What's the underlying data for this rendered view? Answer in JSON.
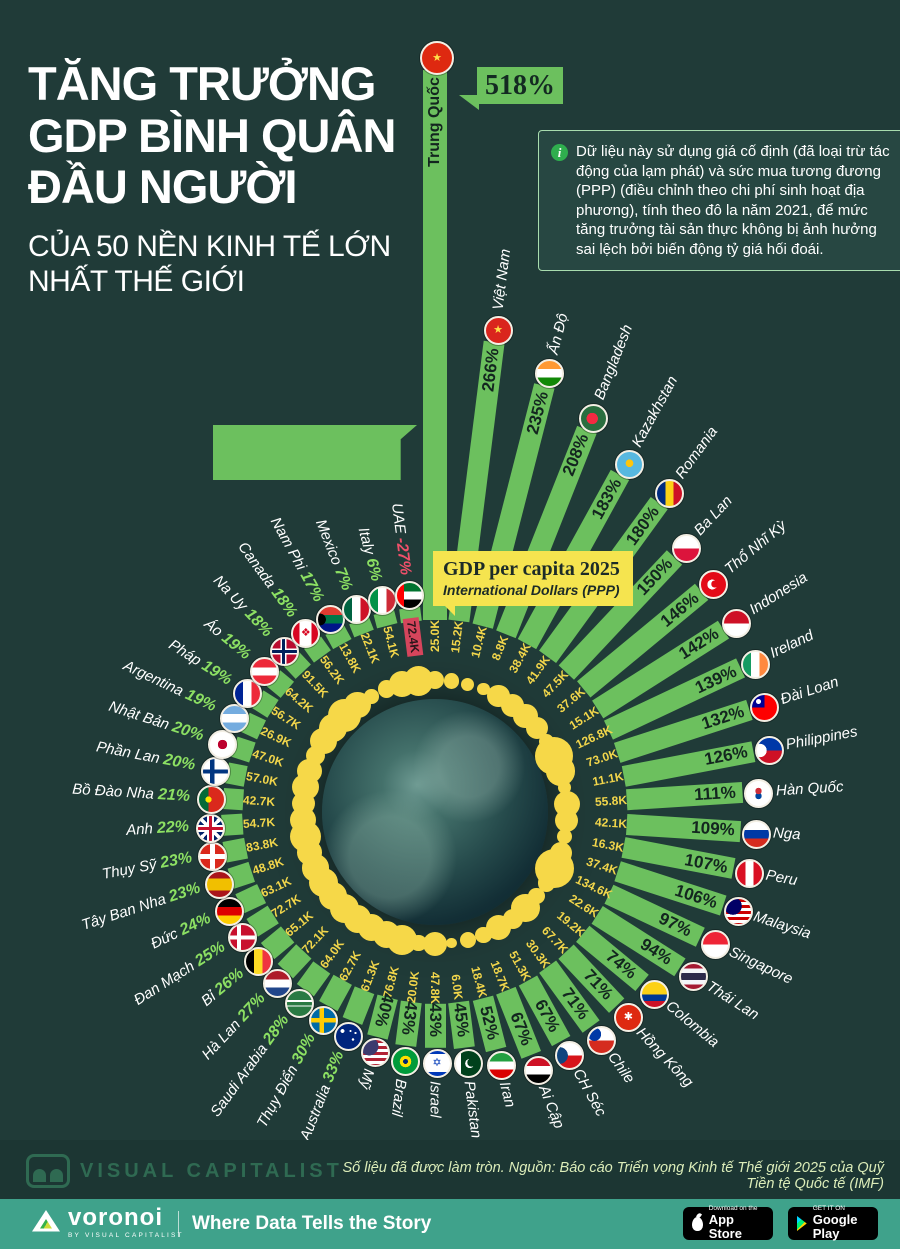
{
  "colors": {
    "background": "#203b38",
    "bar_green": "#6cc05e",
    "label_green": "#8ce063",
    "value_yellow": "#f2d64b",
    "dot_yellow": "#f6d848",
    "negative_red": "#d6455c",
    "center_box_yellow": "#f5e44f",
    "app_bar_teal": "#3fa28b"
  },
  "header": {
    "title_lines": [
      "TĂNG TRƯỞNG",
      "GDP BÌNH QUÂN",
      "ĐẦU NGƯỜI"
    ],
    "subtitle_lines": [
      "CỦA 50 NỀN KINH TẾ LỚN",
      "NHẤT THẾ GIỚI"
    ]
  },
  "info_note": {
    "text": "Dữ liệu này sử dụng giá cố định (đã loại trừ tác động của lạm phát) và sức mua tương đương (PPP) (điều chỉnh theo chi phí sinh hoạt địa phương), tính theo đô la năm 2021, để mức tăng trưởng tài sản thực không bị ảnh hưởng sai lệch bởi biến động tỷ giá hối đoái."
  },
  "china_callout": {
    "value": "518%"
  },
  "center_label": {
    "title": "GDP per capita 2025",
    "subtitle": "International Dollars (PPP)"
  },
  "chart_data": {
    "type": "radial-bar",
    "title": "Tăng trưởng GDP bình quân đầu người của 50 nền kinh tế lớn nhất thế giới",
    "growth_unit": "%",
    "gdp_unit": "nghìn đô la quốc tế (PPP), 2025",
    "series": [
      {
        "name": "Trung Quốc",
        "growth_pct": 518,
        "gdp_k": 25.0,
        "gdp_label": "25.0K",
        "flag": {
          "bg": "#de2910",
          "glyph": "★",
          "glyph_color": "#ffde49"
        }
      },
      {
        "name": "Việt Nam",
        "growth_pct": 266,
        "gdp_k": 15.2,
        "gdp_label": "15.2K",
        "flag": {
          "bg": "#da251d",
          "glyph": "★",
          "glyph_color": "#ffde49"
        }
      },
      {
        "name": "Ấn Độ",
        "growth_pct": 235,
        "gdp_k": 10.4,
        "gdp_label": "10.4K",
        "flag": {
          "bg": "#ffffff",
          "img": "linear-gradient(to bottom,#ff9933 0 33%,#ffffff 33% 66%,#128807 66%)"
        }
      },
      {
        "name": "Bangladesh",
        "growth_pct": 208,
        "gdp_k": 8.8,
        "gdp_label": "8.8K",
        "flag": {
          "bg": "#2a6e3f",
          "img": "radial-gradient(circle at 45% 50%,#f42a41 0 30%,transparent 31%)"
        }
      },
      {
        "name": "Kazakhstan",
        "growth_pct": 183,
        "gdp_k": 38.4,
        "gdp_label": "38.4K",
        "flag": {
          "bg": "#57b8e0",
          "img": "radial-gradient(circle at 50% 45%,#fec50c 0 20%,transparent 21%)"
        }
      },
      {
        "name": "Romania",
        "growth_pct": 180,
        "gdp_k": 41.9,
        "gdp_label": "41.9K",
        "flag": {
          "bg": "#ffffff",
          "img": "linear-gradient(to right,#002b7f 0 33%,#fcd116 33% 66%,#ce1126 66%)"
        }
      },
      {
        "name": "Ba Lan",
        "growth_pct": 150,
        "gdp_k": 47.5,
        "gdp_label": "47.5K",
        "flag": {
          "bg": "#ffffff",
          "img": "linear-gradient(to bottom,#ffffff 0 50%,#dc143c 50%)"
        }
      },
      {
        "name": "Thổ Nhĩ Kỳ",
        "growth_pct": 146,
        "gdp_k": 37.6,
        "gdp_label": "37.6K",
        "flag": {
          "bg": "#e30a17",
          "img": "radial-gradient(circle at 55% 48%,#e30a17 0 18%,transparent 19%),radial-gradient(circle at 45% 50%,#ffffff 0 26%,transparent 27%)"
        }
      },
      {
        "name": "Indonesia",
        "growth_pct": 142,
        "gdp_k": 15.1,
        "gdp_label": "15.1K",
        "flag": {
          "bg": "#ffffff",
          "img": "linear-gradient(to bottom,#ce1126 0 50%,#ffffff 50%)"
        }
      },
      {
        "name": "Ireland",
        "growth_pct": 139,
        "gdp_k": 126.8,
        "gdp_label": "126.8K",
        "flag": {
          "bg": "#ffffff",
          "img": "linear-gradient(to right,#169b62 0 33%,#ffffff 33% 66%,#ff883e 66%)"
        }
      },
      {
        "name": "Đài Loan",
        "growth_pct": 132,
        "gdp_k": 73.0,
        "gdp_label": "73.0K",
        "flag": {
          "bg": "#fe0000",
          "img": "radial-gradient(circle at 26% 26%,#ffffff 0 9%,transparent 10%),conic-gradient(from 270deg,#000095 0 90deg,transparent 90deg)"
        }
      },
      {
        "name": "Philippines",
        "growth_pct": 126,
        "gdp_k": 11.1,
        "gdp_label": "11.1K",
        "flag": {
          "bg": "#ffffff",
          "img": "radial-gradient(circle at 12% 50%,#ffffff 0 26%,transparent 27%),linear-gradient(to bottom,#0038a8 0 50%,#ce1126 50%)"
        }
      },
      {
        "name": "Hàn Quốc",
        "growth_pct": 111,
        "gdp_k": 55.8,
        "gdp_label": "55.8K",
        "flag": {
          "bg": "#ffffff",
          "img": "radial-gradient(circle at 50% 40%,#cd2e3a 0 16%,transparent 17%),radial-gradient(circle at 50% 60%,#0047a0 0 16%,transparent 17%)"
        }
      },
      {
        "name": "Nga",
        "growth_pct": 109,
        "gdp_k": 42.1,
        "gdp_label": "42.1K",
        "flag": {
          "bg": "#ffffff",
          "img": "linear-gradient(to bottom,#ffffff 0 33%,#0039a6 33% 66%,#d52b1e 66%)"
        }
      },
      {
        "name": "Peru",
        "growth_pct": 107,
        "gdp_k": 16.3,
        "gdp_label": "16.3K",
        "flag": {
          "bg": "#ffffff",
          "img": "linear-gradient(to right,#d91023 0 33%,#ffffff 33% 66%,#d91023 66%)"
        }
      },
      {
        "name": "Malaysia",
        "growth_pct": 106,
        "gdp_k": 37.4,
        "gdp_label": "37.4K",
        "flag": {
          "bg": "#ffffff",
          "img": "radial-gradient(circle at 28% 28%,#010066 0 34%,transparent 35%),repeating-linear-gradient(to bottom,#cc0001 0 3px,#ffffff 3px 6px)"
        }
      },
      {
        "name": "Singapore",
        "growth_pct": 97,
        "gdp_k": 134.6,
        "gdp_label": "134.6K",
        "flag": {
          "bg": "#ffffff",
          "img": "linear-gradient(to bottom,#ee2536 0 50%,#ffffff 50%)"
        }
      },
      {
        "name": "Thái Lan",
        "growth_pct": 94,
        "gdp_k": 22.6,
        "gdp_label": "22.6K",
        "flag": {
          "bg": "#ffffff",
          "img": "linear-gradient(to bottom,#a51931 0 18%,#f4f5f8 18% 36%,#2d2a4a 36% 64%,#f4f5f8 64% 82%,#a51931 82%)"
        }
      },
      {
        "name": "Colombia",
        "growth_pct": 74,
        "gdp_k": 19.2,
        "gdp_label": "19.2K",
        "flag": {
          "bg": "#ffffff",
          "img": "linear-gradient(to bottom,#fcd116 0 50%,#003893 50% 75%,#ce1126 75%)"
        }
      },
      {
        "name": "Hồng Kông",
        "growth_pct": 71,
        "gdp_k": 67.7,
        "gdp_label": "67.7K",
        "flag": {
          "bg": "#de2910",
          "glyph": "✱",
          "glyph_color": "#ffffff"
        }
      },
      {
        "name": "Chile",
        "growth_pct": 71,
        "gdp_k": 30.3,
        "gdp_label": "30.3K",
        "flag": {
          "bg": "#ffffff",
          "img": "radial-gradient(circle at 22% 25%,#0039a6 0 24%,transparent 25%),linear-gradient(to bottom,#ffffff 0 50%,#d52b1e 50%)"
        }
      },
      {
        "name": "CH Séc",
        "growth_pct": 67,
        "gdp_k": 51.3,
        "gdp_label": "51.3K",
        "flag": {
          "bg": "#ffffff",
          "img": "radial-gradient(circle at 10% 50%,#11457e 0 32%,transparent 33%),linear-gradient(to bottom,#ffffff 0 50%,#d7141a 50%)"
        }
      },
      {
        "name": "Ai Cập",
        "growth_pct": 67,
        "gdp_k": 18.7,
        "gdp_label": "18.7K",
        "flag": {
          "bg": "#ffffff",
          "img": "linear-gradient(to bottom,#ce1126 0 33%,#ffffff 33% 66%,#000000 66%)"
        }
      },
      {
        "name": "Iran",
        "growth_pct": 52,
        "gdp_k": 18.4,
        "gdp_label": "18.4K",
        "flag": {
          "bg": "#ffffff",
          "img": "linear-gradient(to bottom,#239f40 0 33%,#ffffff 33% 66%,#da0000 66%)"
        }
      },
      {
        "name": "Pakistan",
        "growth_pct": 45,
        "gdp_k": 6.0,
        "gdp_label": "6.0K",
        "flag": {
          "bg": "#01411c",
          "img": "radial-gradient(circle at 62% 46%,#01411c 0 20%,transparent 21%),radial-gradient(circle at 55% 50%,#ffffff 0 24%,transparent 25%),linear-gradient(to right,#ffffff 0 20%,transparent 20%)"
        }
      },
      {
        "name": "Israel",
        "growth_pct": 43,
        "gdp_k": 47.8,
        "gdp_label": "47.8K",
        "flag": {
          "bg": "#ffffff",
          "glyph": "✡",
          "glyph_color": "#0038b8",
          "img": "linear-gradient(to bottom,#0038b8 0 12%,transparent 12% 84%,#0038b8 84%)"
        }
      },
      {
        "name": "Brazil",
        "growth_pct": 43,
        "gdp_k": 20.0,
        "gdp_label": "20.0K",
        "flag": {
          "bg": "#009b3a",
          "img": "radial-gradient(circle,#002776 0 14%,#fedf00 14% 32%,transparent 33%)"
        }
      },
      {
        "name": "Mỹ",
        "growth_pct": 40,
        "gdp_k": 76.8,
        "gdp_label": "76.8K",
        "flag": {
          "bg": "#ffffff",
          "img": "radial-gradient(circle at 25% 25%,#3c3b6e 0 34%,transparent 35%),repeating-linear-gradient(to bottom,#b22234 0 3px,#ffffff 3px 6px)"
        }
      },
      {
        "name": "Australia",
        "growth_pct": 33,
        "gdp_k": 61.3,
        "gdp_label": "61.3K",
        "flag": {
          "bg": "#00247d",
          "img": "radial-gradient(circle at 26% 28%,#ffffff 0 7%,transparent 8%),radial-gradient(circle at 68% 62%,#ffffff 0 5%,transparent 6%),radial-gradient(circle at 58% 28%,#ffffff 0 4%,transparent 5%),radial-gradient(circle at 78% 36%,#ffffff 0 4%,transparent 5%)"
        }
      },
      {
        "name": "Thụy Điển",
        "growth_pct": 30,
        "gdp_k": 62.7,
        "gdp_label": "62.7K",
        "flag": {
          "bg": "#006aa7",
          "img": "linear-gradient(to right,transparent 0 34%,#fecc02 34% 52%,transparent 52%),linear-gradient(to bottom,transparent 0 41%,#fecc02 41% 59%,transparent 59%)"
        }
      },
      {
        "name": "Saudi Arabia",
        "growth_pct": 28,
        "gdp_k": 64.0,
        "gdp_label": "64.0K",
        "flag": {
          "bg": "#2a7a43",
          "img": "linear-gradient(to bottom,transparent 0 36%,#ffffff 36% 44%,transparent 44% 58%,#ffffff 58% 63%,transparent 63%)"
        }
      },
      {
        "name": "Hà Lan",
        "growth_pct": 27,
        "gdp_k": 72.1,
        "gdp_label": "72.1K",
        "flag": {
          "bg": "#ffffff",
          "img": "linear-gradient(to bottom,#ae1c28 0 33%,#ffffff 33% 66%,#21468b 66%)"
        }
      },
      {
        "name": "Bỉ",
        "growth_pct": 26,
        "gdp_k": 65.1,
        "gdp_label": "65.1K",
        "flag": {
          "bg": "#ffffff",
          "img": "linear-gradient(to right,#000000 0 33%,#fdda24 33% 66%,#ef3340 66%)"
        }
      },
      {
        "name": "Đan Mạch",
        "growth_pct": 25,
        "gdp_k": 72.7,
        "gdp_label": "72.7K",
        "flag": {
          "bg": "#c8102e",
          "img": "linear-gradient(to right,transparent 0 28%,#ffffff 28% 44%,transparent 44%),linear-gradient(to bottom,transparent 0 42%,#ffffff 42% 58%,transparent 58%)"
        }
      },
      {
        "name": "Đức",
        "growth_pct": 24,
        "gdp_k": 63.1,
        "gdp_label": "63.1K",
        "flag": {
          "bg": "#ffffff",
          "img": "linear-gradient(to bottom,#000000 0 33%,#dd0000 33% 66%,#ffce00 66%)"
        }
      },
      {
        "name": "Tây Ban Nha",
        "growth_pct": 23,
        "gdp_k": 48.8,
        "gdp_label": "48.8K",
        "flag": {
          "bg": "#ffffff",
          "img": "linear-gradient(to bottom,#aa151b 0 25%,#f1bf00 25% 75%,#aa151b 75%)"
        }
      },
      {
        "name": "Thụy Sỹ",
        "growth_pct": 23,
        "gdp_k": 83.8,
        "gdp_label": "83.8K",
        "flag": {
          "bg": "#da291c",
          "img": "linear-gradient(to right,transparent 0 40%,#ffffff 40% 60%,transparent 60%),linear-gradient(to bottom,transparent 0 40%,#ffffff 40% 60%,transparent 60%)"
        }
      },
      {
        "name": "Anh",
        "growth_pct": 22,
        "gdp_k": 54.7,
        "gdp_label": "54.7K",
        "flag": {
          "bg": "#012169",
          "img": "linear-gradient(to right,transparent 0 44%,#c8102e 44% 56%,transparent 56%),linear-gradient(to bottom,transparent 0 44%,#c8102e 44% 56%,transparent 56%),linear-gradient(to right,transparent 0 36%,#ffffff 36% 64%,transparent 64%),linear-gradient(to bottom,transparent 0 36%,#ffffff 36% 64%,transparent 64%),linear-gradient(45deg,transparent 0 45%,#ffffff 45% 55%,transparent 55%),linear-gradient(135deg,transparent 0 45%,#ffffff 45% 55%,transparent 55%)"
        }
      },
      {
        "name": "Bồ Đào Nha",
        "growth_pct": 21,
        "gdp_k": 42.7,
        "gdp_label": "42.7K",
        "flag": {
          "bg": "#da291c",
          "img": "radial-gradient(circle at 38% 50%,#ffe900 0 15%,transparent 16%),linear-gradient(to right,#046a38 0 38%,#da291c 38%)"
        }
      },
      {
        "name": "Phần Lan",
        "growth_pct": 20,
        "gdp_k": 57.0,
        "gdp_label": "57.0K",
        "flag": {
          "bg": "#ffffff",
          "img": "linear-gradient(to right,transparent 0 28%,#003580 28% 46%,transparent 46%),linear-gradient(to bottom,transparent 0 42%,#003580 42% 58%,transparent 58%)"
        }
      },
      {
        "name": "Nhật Bản",
        "growth_pct": 20,
        "gdp_k": 47.0,
        "gdp_label": "47.0K",
        "flag": {
          "bg": "#ffffff",
          "img": "radial-gradient(circle,#bc002d 0 26%,transparent 27%)"
        }
      },
      {
        "name": "Argentina",
        "growth_pct": 19,
        "gdp_k": 26.9,
        "gdp_label": "26.9K",
        "flag": {
          "bg": "#ffffff",
          "img": "linear-gradient(to bottom,#74acdf 0 33%,#ffffff 33% 66%,#74acdf 66%)"
        }
      },
      {
        "name": "Pháp",
        "growth_pct": 19,
        "gdp_k": 56.7,
        "gdp_label": "56.7K",
        "flag": {
          "bg": "#ffffff",
          "img": "linear-gradient(to right,#002395 0 33%,#ffffff 33% 66%,#ed2939 66%)"
        }
      },
      {
        "name": "Áo",
        "growth_pct": 19,
        "gdp_k": 64.2,
        "gdp_label": "64.2K",
        "flag": {
          "bg": "#ffffff",
          "img": "linear-gradient(to bottom,#ed2939 0 33%,#ffffff 33% 66%,#ed2939 66%)"
        }
      },
      {
        "name": "Na Uy",
        "growth_pct": 18,
        "gdp_k": 91.5,
        "gdp_label": "91.5K",
        "flag": {
          "bg": "#ba0c2f",
          "img": "linear-gradient(to right,transparent 0 40%,#00205b 40% 52%,transparent 52%),linear-gradient(to bottom,transparent 0 44%,#00205b 44% 56%,transparent 56%),linear-gradient(to right,transparent 0 34%,#ffffff 34% 58%,transparent 58%),linear-gradient(to bottom,transparent 0 38%,#ffffff 38% 62%,transparent 62%)"
        }
      },
      {
        "name": "Canada",
        "growth_pct": 18,
        "gdp_k": 56.2,
        "gdp_label": "56.2K",
        "flag": {
          "bg": "#ffffff",
          "glyph": "❖",
          "glyph_color": "#d80621",
          "img": "linear-gradient(to right,#d80621 0 26%,transparent 26% 74%,#d80621 74%)"
        }
      },
      {
        "name": "Nam Phi",
        "growth_pct": 17,
        "gdp_k": 13.8,
        "gdp_label": "13.8K",
        "flag": {
          "bg": "#ffffff",
          "img": "radial-gradient(circle at 8% 50%,#000000 0 22%,transparent 23%),linear-gradient(to bottom,#e03c31 0 33%,#007749 33% 66%,#001489 66%)"
        }
      },
      {
        "name": "Mexico",
        "growth_pct": 7,
        "gdp_k": 22.1,
        "gdp_label": "22.1K",
        "flag": {
          "bg": "#ffffff",
          "img": "linear-gradient(to right,#006341 0 33%,#ffffff 33% 66%,#ce1126 66%)"
        }
      },
      {
        "name": "Italy",
        "growth_pct": 6,
        "gdp_k": 54.1,
        "gdp_label": "54.1K",
        "flag": {
          "bg": "#ffffff",
          "img": "linear-gradient(to right,#009246 0 33%,#ffffff 33% 66%,#ce2b37 66%)"
        }
      },
      {
        "name": "UAE",
        "growth_pct": -27,
        "gdp_k": 72.4,
        "gdp_label": "72.4K",
        "highlight": true,
        "flag": {
          "bg": "#ffffff",
          "img": "linear-gradient(to right,#ff0000 0 28%,transparent 28%),linear-gradient(to bottom,#00732f 0 33%,#ffffff 33% 66%,#000000 66%)"
        }
      }
    ]
  },
  "footer": {
    "brand": "VISUAL CAPITALIST",
    "source": "Số liệu đã được làm tròn. Nguồn: Báo cáo Triển vọng Kinh tế Thế giới 2025 của Quỹ Tiền tệ Quốc tế (IMF)"
  },
  "app_bar": {
    "logo": "voronoi",
    "logo_sub": "BY VISUAL CAPITALIST",
    "tagline": "Where Data Tells the Story",
    "badges": [
      {
        "line1": "Download on the",
        "line2": "App Store"
      },
      {
        "line1": "GET IT ON",
        "line2": "Google Play"
      }
    ]
  }
}
